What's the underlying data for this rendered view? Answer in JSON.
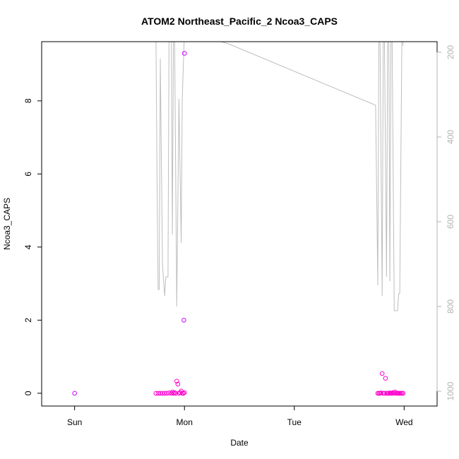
{
  "chart_data": {
    "type": "scatter",
    "title": "ATOM2 Northeast_Pacific_2 Ncoa3_CAPS",
    "xlabel": "Date",
    "ylabel": "Ncoa3_CAPS",
    "x_ticks": [
      "Sun",
      "Mon",
      "Tue",
      "Wed"
    ],
    "x_range_days": [
      -0.3,
      3.3
    ],
    "ylim": [
      -0.35,
      9.62
    ],
    "y_ticks": [
      0,
      2,
      4,
      6,
      8
    ],
    "y2_ticks": [
      200,
      400,
      600,
      800,
      1000
    ],
    "y2_range": [
      1035,
      175
    ],
    "y2_reversed": true,
    "colors": {
      "points_main": "#ff00cc",
      "points_alt": "#cc00ff",
      "depth_line": "#bebebe",
      "right_axis": "#b3b3b3"
    },
    "points": [
      {
        "x": 0.0,
        "y": 0.0
      },
      {
        "x": 0.74,
        "y": 0.0
      },
      {
        "x": 0.76,
        "y": 0.0
      },
      {
        "x": 0.78,
        "y": 0.0
      },
      {
        "x": 0.8,
        "y": 0.0
      },
      {
        "x": 0.82,
        "y": 0.0
      },
      {
        "x": 0.84,
        "y": 0.0
      },
      {
        "x": 0.86,
        "y": 0.01
      },
      {
        "x": 0.88,
        "y": 0.0
      },
      {
        "x": 0.89,
        "y": 0.03
      },
      {
        "x": 0.9,
        "y": 0.0
      },
      {
        "x": 0.91,
        "y": 0.02
      },
      {
        "x": 0.92,
        "y": 0.0
      },
      {
        "x": 0.93,
        "y": 0.33
      },
      {
        "x": 0.94,
        "y": 0.25
      },
      {
        "x": 0.95,
        "y": 0.0
      },
      {
        "x": 0.96,
        "y": 0.02
      },
      {
        "x": 0.97,
        "y": 0.06
      },
      {
        "x": 0.98,
        "y": 0.0
      },
      {
        "x": 0.99,
        "y": 0.0
      },
      {
        "x": 0.995,
        "y": 2.0
      },
      {
        "x": 1.0,
        "y": 9.3
      },
      {
        "x": 1.0,
        "y": 0.02
      },
      {
        "x": 2.76,
        "y": 0.0
      },
      {
        "x": 2.77,
        "y": 0.0
      },
      {
        "x": 2.78,
        "y": 0.0
      },
      {
        "x": 2.79,
        "y": 0.01
      },
      {
        "x": 2.8,
        "y": 0.54
      },
      {
        "x": 2.81,
        "y": 0.0
      },
      {
        "x": 2.82,
        "y": 0.0
      },
      {
        "x": 2.83,
        "y": 0.41
      },
      {
        "x": 2.84,
        "y": 0.0
      },
      {
        "x": 2.85,
        "y": 0.0
      },
      {
        "x": 2.86,
        "y": 0.0
      },
      {
        "x": 2.87,
        "y": 0.01
      },
      {
        "x": 2.88,
        "y": 0.0
      },
      {
        "x": 2.89,
        "y": 0.0
      },
      {
        "x": 2.9,
        "y": 0.02
      },
      {
        "x": 2.91,
        "y": 0.0
      },
      {
        "x": 2.92,
        "y": 0.03
      },
      {
        "x": 2.93,
        "y": 0.0
      },
      {
        "x": 2.94,
        "y": 0.0
      },
      {
        "x": 2.95,
        "y": 0.0
      },
      {
        "x": 2.96,
        "y": 0.0
      },
      {
        "x": 2.97,
        "y": 0.0
      },
      {
        "x": 2.98,
        "y": 0.0
      },
      {
        "x": 2.99,
        "y": 0.0
      }
    ],
    "depth_line": [
      {
        "x": 0.74,
        "y2": 150
      },
      {
        "x": 0.75,
        "y2": 480
      },
      {
        "x": 0.76,
        "y2": 760
      },
      {
        "x": 0.77,
        "y2": 760
      },
      {
        "x": 0.78,
        "y2": 215
      },
      {
        "x": 0.8,
        "y2": 700
      },
      {
        "x": 0.82,
        "y2": 775
      },
      {
        "x": 0.83,
        "y2": 730
      },
      {
        "x": 0.85,
        "y2": 730
      },
      {
        "x": 0.86,
        "y2": 150
      },
      {
        "x": 0.88,
        "y2": 150
      },
      {
        "x": 0.89,
        "y2": 630
      },
      {
        "x": 0.9,
        "y2": 150
      },
      {
        "x": 0.91,
        "y2": 150
      },
      {
        "x": 0.93,
        "y2": 800
      },
      {
        "x": 0.95,
        "y2": 310
      },
      {
        "x": 0.97,
        "y2": 650
      },
      {
        "x": 0.98,
        "y2": 310
      },
      {
        "x": 1.0,
        "y2": 150
      },
      {
        "x": 1.4,
        "y2": 180
      },
      {
        "x": 2.74,
        "y2": 325
      },
      {
        "x": 2.76,
        "y2": 750
      },
      {
        "x": 2.77,
        "y2": 150
      },
      {
        "x": 2.78,
        "y2": 150
      },
      {
        "x": 2.8,
        "y2": 775
      },
      {
        "x": 2.81,
        "y2": 150
      },
      {
        "x": 2.82,
        "y2": 150
      },
      {
        "x": 2.84,
        "y2": 730
      },
      {
        "x": 2.85,
        "y2": 150
      },
      {
        "x": 2.86,
        "y2": 150
      },
      {
        "x": 2.87,
        "y2": 740
      },
      {
        "x": 2.88,
        "y2": 150
      },
      {
        "x": 2.89,
        "y2": 150
      },
      {
        "x": 2.91,
        "y2": 810
      },
      {
        "x": 2.94,
        "y2": 810
      },
      {
        "x": 2.95,
        "y2": 770
      },
      {
        "x": 2.96,
        "y2": 770
      },
      {
        "x": 2.98,
        "y2": 150
      },
      {
        "x": 2.99,
        "y2": 185
      }
    ]
  }
}
